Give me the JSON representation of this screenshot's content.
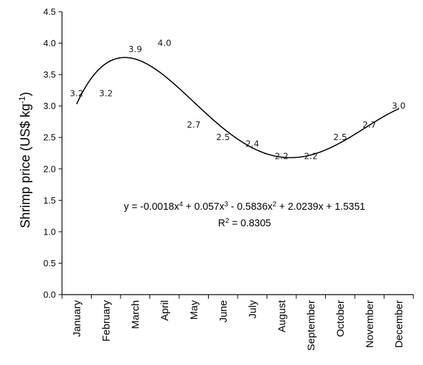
{
  "chart_data": {
    "type": "scatter",
    "title": "",
    "ylabel": "Shrimp price (US$ kg",
    "ylabel_sup": "-1",
    "ylabel_close": ")",
    "xlabel": "",
    "ylim": [
      0,
      4.5
    ],
    "yticks": [
      "0.0",
      "0.5",
      "1.0",
      "1.5",
      "2.0",
      "2.5",
      "3.0",
      "3.5",
      "4.0",
      "4.5"
    ],
    "categories": [
      "January",
      "February",
      "March",
      "April",
      "May",
      "June",
      "July",
      "August",
      "September",
      "October",
      "November",
      "December"
    ],
    "values": [
      3.2,
      3.2,
      3.9,
      4.0,
      2.7,
      2.5,
      2.4,
      2.2,
      2.2,
      2.5,
      2.7,
      3.0
    ],
    "data_labels": [
      "3.2",
      "3.2",
      "3.9",
      "4.0",
      "2.7",
      "2.5",
      "2.4",
      "2.2",
      "2.2",
      "2.5",
      "2.7",
      "3.0"
    ],
    "trendline": {
      "type": "polynomial",
      "order": 4,
      "coefficients": [
        -0.0018,
        0.057,
        -0.5836,
        2.0239,
        1.5351
      ],
      "r_squared": 0.8305
    },
    "equation": {
      "p1": "y = -0.0018x",
      "e1": "4",
      "p2": " + 0.057x",
      "e2": "3",
      "p3": " - 0.5836x",
      "e3": "2",
      "p4": " + 2.0239x + 1.5351",
      "r2_a": "R",
      "r2_exp": "2",
      "r2_b": " = 0.8305"
    },
    "grid": false,
    "legend": "none",
    "colors": {
      "axis": "#000000",
      "curve": "#000000",
      "text": "#1a1a1a"
    }
  }
}
